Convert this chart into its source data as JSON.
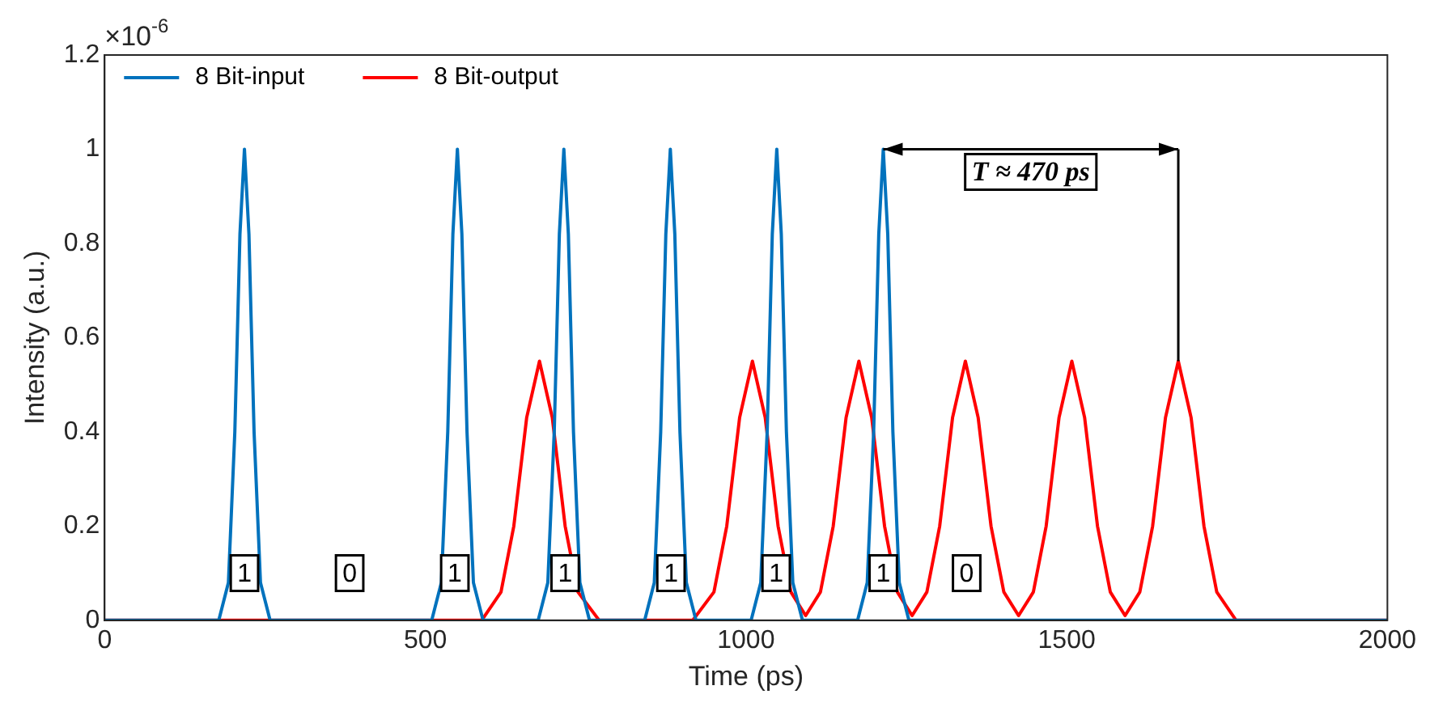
{
  "chart_data": {
    "type": "line",
    "xlabel": "Time (ps)",
    "ylabel": "Intensity (a.u.)",
    "xlim": [
      0,
      2000
    ],
    "xticks": [
      0,
      500,
      1000,
      1500,
      2000
    ],
    "ylim": [
      0,
      1.2
    ],
    "yticks": [
      0,
      0.2,
      0.4,
      0.6,
      0.8,
      1,
      1.2
    ],
    "grid": false,
    "legend": "top left",
    "marker": "none",
    "line_style": "solid",
    "series": [
      {
        "name": "8 Bit-input",
        "color": "#0072bd",
        "x": [
          0,
          178,
          193,
          203,
          211,
          218,
          225,
          233,
          243,
          258,
          510,
          525,
          535,
          543,
          550,
          557,
          565,
          575,
          590,
          676,
          691,
          701,
          709,
          716,
          723,
          731,
          741,
          756,
          842,
          857,
          867,
          875,
          882,
          889,
          897,
          907,
          922,
          1008,
          1023,
          1033,
          1041,
          1048,
          1055,
          1063,
          1073,
          1088,
          1174,
          1189,
          1199,
          1207,
          1214,
          1221,
          1229,
          1239,
          1254,
          2000
        ],
        "values": [
          0,
          0,
          0.08,
          0.4,
          0.82,
          1,
          0.82,
          0.4,
          0.08,
          0,
          0,
          0.08,
          0.4,
          0.82,
          1,
          0.82,
          0.4,
          0.08,
          0,
          0,
          0.08,
          0.4,
          0.82,
          1,
          0.82,
          0.4,
          0.08,
          0,
          0,
          0.08,
          0.4,
          0.82,
          1,
          0.82,
          0.4,
          0.08,
          0,
          0,
          0.08,
          0.4,
          0.82,
          1,
          0.82,
          0.4,
          0.08,
          0,
          0,
          0.08,
          0.4,
          0.82,
          1,
          0.82,
          0.4,
          0.08,
          0,
          0
        ]
      },
      {
        "name": "8 Bit-output",
        "color": "#ff0000",
        "x": [
          0,
          588,
          618,
          638,
          658,
          678,
          698,
          718,
          738,
          771,
          917,
          950,
          970,
          990,
          1010,
          1030,
          1050,
          1070,
          1093,
          1116,
          1136,
          1156,
          1176,
          1196,
          1216,
          1236,
          1259,
          1282,
          1302,
          1322,
          1342,
          1362,
          1382,
          1402,
          1425,
          1448,
          1468,
          1488,
          1508,
          1528,
          1548,
          1568,
          1591,
          1614,
          1634,
          1654,
          1674,
          1694,
          1714,
          1734,
          1764,
          2000
        ],
        "values": [
          0,
          0,
          0.06,
          0.2,
          0.43,
          0.55,
          0.43,
          0.2,
          0.06,
          0,
          0,
          0.06,
          0.2,
          0.43,
          0.55,
          0.43,
          0.2,
          0.06,
          0.01,
          0.06,
          0.2,
          0.43,
          0.55,
          0.43,
          0.2,
          0.06,
          0.01,
          0.06,
          0.2,
          0.43,
          0.55,
          0.43,
          0.2,
          0.06,
          0.01,
          0.06,
          0.2,
          0.43,
          0.55,
          0.43,
          0.2,
          0.06,
          0.01,
          0.06,
          0.2,
          0.43,
          0.55,
          0.43,
          0.2,
          0.06,
          0,
          0
        ]
      }
    ],
    "annotations": [
      "×10$^{-6}$",
      {
        "text": "1",
        "x": 218,
        "y": 0.1
      },
      {
        "text": "0",
        "x": 382,
        "y": 0.1
      },
      {
        "text": "1",
        "x": 546,
        "y": 0.1
      },
      {
        "text": "1",
        "x": 718,
        "y": 0.1
      },
      {
        "text": "1",
        "x": 883,
        "y": 0.1
      },
      {
        "text": "1",
        "x": 1047,
        "y": 0.1
      },
      {
        "text": "1",
        "x": 1214,
        "y": 0.1
      },
      {
        "text": "0",
        "x": 1344,
        "y": 0.1
      },
      "T ≈ 470 ps"
    ]
  }
}
